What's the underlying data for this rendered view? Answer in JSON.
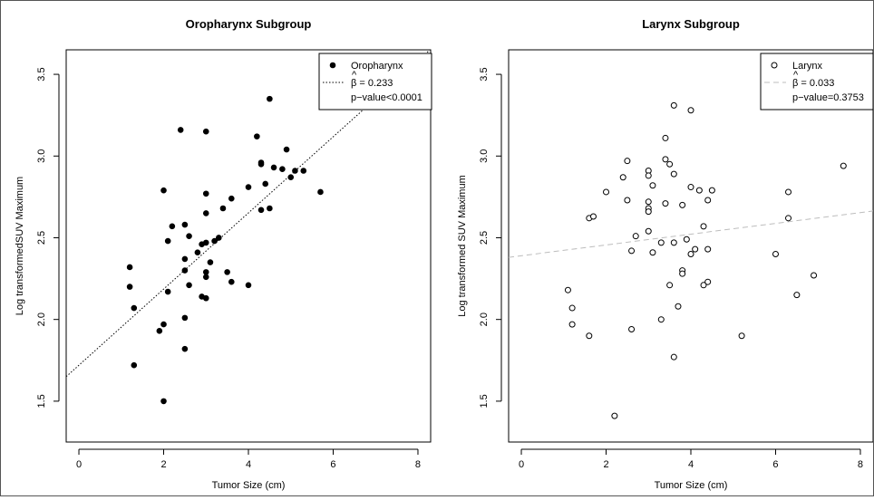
{
  "chart_data": [
    {
      "type": "scatter",
      "title": "Oropharynx Subgroup",
      "xlabel": "Tumor Size (cm)",
      "ylabel": "Log transformedSUV Maximum",
      "xlim": [
        -0.3,
        8.3
      ],
      "ylim": [
        1.25,
        3.65
      ],
      "xticks": [
        0,
        2,
        4,
        6,
        8
      ],
      "yticks": [
        1.5,
        2.0,
        2.5,
        3.0,
        3.5
      ],
      "xtick_labels": [
        "0",
        "2",
        "4",
        "6",
        "8"
      ],
      "ytick_labels": [
        "1.5",
        "2.0",
        "2.5",
        "3.0",
        "3.5"
      ],
      "grid": false,
      "legend_position": "top-right",
      "series": [
        {
          "name": "Oropharynx",
          "marker": "filled-circle",
          "color": "#000000",
          "points": [
            [
              1.2,
              2.32
            ],
            [
              1.2,
              2.2
            ],
            [
              1.3,
              2.07
            ],
            [
              1.3,
              1.72
            ],
            [
              1.9,
              1.93
            ],
            [
              2.0,
              1.97
            ],
            [
              2.0,
              2.79
            ],
            [
              2.0,
              1.5
            ],
            [
              2.1,
              2.48
            ],
            [
              2.1,
              2.17
            ],
            [
              2.2,
              2.57
            ],
            [
              2.4,
              3.16
            ],
            [
              2.5,
              2.58
            ],
            [
              2.5,
              2.37
            ],
            [
              2.5,
              2.3
            ],
            [
              2.5,
              2.01
            ],
            [
              2.5,
              1.82
            ],
            [
              2.6,
              2.51
            ],
            [
              2.6,
              2.21
            ],
            [
              2.8,
              2.41
            ],
            [
              2.9,
              2.46
            ],
            [
              2.9,
              2.14
            ],
            [
              3.0,
              3.15
            ],
            [
              3.0,
              2.77
            ],
            [
              3.0,
              2.65
            ],
            [
              3.0,
              2.47
            ],
            [
              3.0,
              2.29
            ],
            [
              3.0,
              2.26
            ],
            [
              3.0,
              2.13
            ],
            [
              3.1,
              2.35
            ],
            [
              3.2,
              2.48
            ],
            [
              3.3,
              2.5
            ],
            [
              3.4,
              2.68
            ],
            [
              3.5,
              2.29
            ],
            [
              3.6,
              2.74
            ],
            [
              3.6,
              2.23
            ],
            [
              4.0,
              2.81
            ],
            [
              4.0,
              2.21
            ],
            [
              4.2,
              3.12
            ],
            [
              4.3,
              2.96
            ],
            [
              4.3,
              2.95
            ],
            [
              4.3,
              2.67
            ],
            [
              4.4,
              2.83
            ],
            [
              4.5,
              3.35
            ],
            [
              4.5,
              2.68
            ],
            [
              4.6,
              2.93
            ],
            [
              4.8,
              2.92
            ],
            [
              4.9,
              3.04
            ],
            [
              5.0,
              2.87
            ],
            [
              5.1,
              2.91
            ],
            [
              5.3,
              2.91
            ],
            [
              5.7,
              2.78
            ]
          ]
        }
      ],
      "fit_line": {
        "intercept": 1.72,
        "slope": 0.233,
        "style": "dotted",
        "color": "#000000"
      },
      "legend": {
        "label": "Oropharynx",
        "beta": "β = 0.233",
        "pvalue": "p−value<0.0001"
      }
    },
    {
      "type": "scatter",
      "title": "Larynx Subgroup",
      "xlabel": "Tumor Size (cm)",
      "ylabel": "Log transformed SUV Maximum",
      "xlim": [
        -0.3,
        8.3
      ],
      "ylim": [
        1.25,
        3.65
      ],
      "xticks": [
        0,
        2,
        4,
        6,
        8
      ],
      "yticks": [
        1.5,
        2.0,
        2.5,
        3.0,
        3.5
      ],
      "xtick_labels": [
        "0",
        "2",
        "4",
        "6",
        "8"
      ],
      "ytick_labels": [
        "1.5",
        "2.0",
        "2.5",
        "3.0",
        "3.5"
      ],
      "grid": false,
      "legend_position": "top-right",
      "series": [
        {
          "name": "Larynx",
          "marker": "open-circle",
          "color": "#000000",
          "points": [
            [
              1.1,
              2.18
            ],
            [
              1.2,
              2.07
            ],
            [
              1.2,
              1.97
            ],
            [
              1.6,
              2.62
            ],
            [
              1.6,
              1.9
            ],
            [
              1.7,
              2.63
            ],
            [
              2.0,
              2.78
            ],
            [
              2.2,
              1.41
            ],
            [
              2.4,
              2.87
            ],
            [
              2.5,
              2.97
            ],
            [
              2.5,
              2.73
            ],
            [
              2.6,
              2.42
            ],
            [
              2.6,
              1.94
            ],
            [
              2.7,
              2.51
            ],
            [
              3.0,
              2.91
            ],
            [
              3.0,
              2.88
            ],
            [
              3.0,
              2.72
            ],
            [
              3.0,
              2.68
            ],
            [
              3.0,
              2.66
            ],
            [
              3.0,
              2.54
            ],
            [
              3.1,
              2.82
            ],
            [
              3.1,
              2.41
            ],
            [
              3.3,
              2.47
            ],
            [
              3.3,
              2.0
            ],
            [
              3.4,
              3.11
            ],
            [
              3.4,
              2.98
            ],
            [
              3.4,
              2.71
            ],
            [
              3.5,
              2.95
            ],
            [
              3.5,
              2.21
            ],
            [
              3.6,
              3.31
            ],
            [
              3.6,
              2.89
            ],
            [
              3.6,
              2.47
            ],
            [
              3.6,
              1.77
            ],
            [
              3.7,
              2.08
            ],
            [
              3.8,
              2.7
            ],
            [
              3.8,
              2.3
            ],
            [
              3.8,
              2.28
            ],
            [
              3.9,
              2.49
            ],
            [
              4.0,
              3.28
            ],
            [
              4.0,
              2.81
            ],
            [
              4.0,
              2.4
            ],
            [
              4.1,
              2.43
            ],
            [
              4.2,
              2.79
            ],
            [
              4.3,
              2.57
            ],
            [
              4.3,
              2.21
            ],
            [
              4.4,
              2.73
            ],
            [
              4.4,
              2.43
            ],
            [
              4.4,
              2.23
            ],
            [
              4.5,
              2.79
            ],
            [
              5.2,
              1.9
            ],
            [
              6.0,
              2.4
            ],
            [
              6.3,
              2.78
            ],
            [
              6.3,
              2.62
            ],
            [
              6.5,
              2.15
            ],
            [
              6.9,
              2.27
            ],
            [
              7.6,
              2.94
            ]
          ]
        }
      ],
      "fit_line": {
        "intercept": 2.39,
        "slope": 0.033,
        "style": "dashed",
        "color": "#bdbdbd"
      },
      "legend": {
        "label": "Larynx",
        "beta": "β = 0.033",
        "pvalue": "p−value=0.3753"
      }
    }
  ]
}
